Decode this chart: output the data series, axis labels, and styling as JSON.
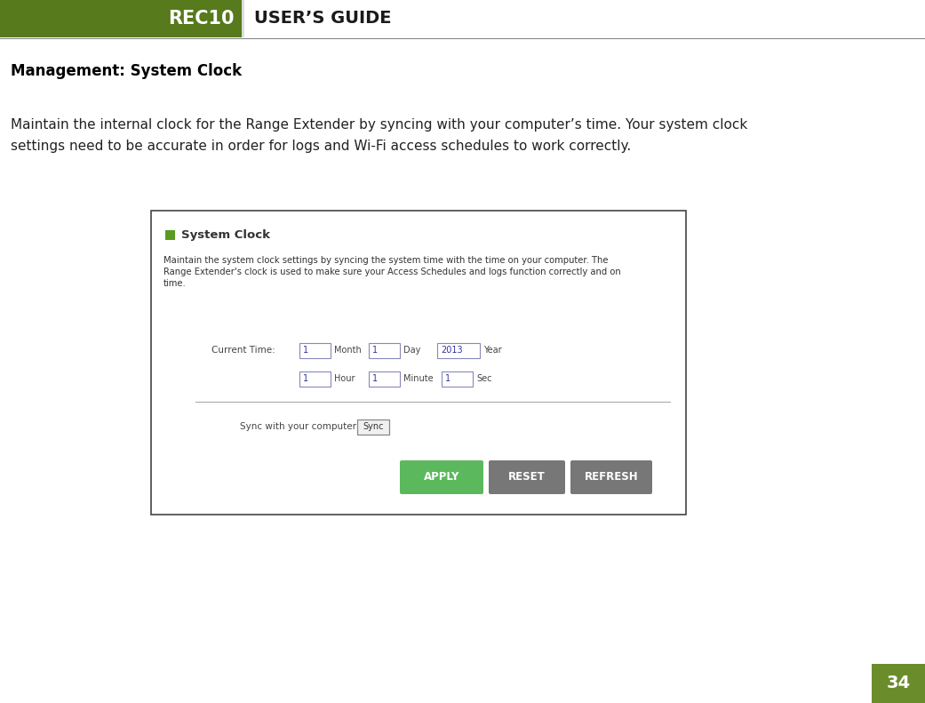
{
  "page_bg": "#ffffff",
  "header_bg": "#567a1c",
  "header_text_rec10": "REC10",
  "header_text_guide": "USER’S GUIDE",
  "header_text_color": "#ffffff",
  "header_guide_color": "#1a1a1a",
  "section_title": "Management: System Clock",
  "body_text_line1": "Maintain the internal clock for the Range Extender by syncing with your computer’s time. Your system clock",
  "body_text_line2": "settings need to be accurate in order for logs and Wi-Fi access schedules to work correctly.",
  "page_number": "34",
  "page_num_bg": "#6b8c2a",
  "page_num_color": "#ffffff",
  "panel_border": "#444444",
  "panel_bg": "#ffffff",
  "green_square_color": "#5a9a20",
  "system_clock_title": "System Clock",
  "panel_desc_line1": "Maintain the system clock settings by syncing the system time with the time on your computer. The",
  "panel_desc_line2": "Range Extender's clock is used to make sure your Access Schedules and logs function correctly and on",
  "panel_desc_line3": "time.",
  "current_time_label": "Current Time:",
  "field_month_val": "1",
  "field_day_val": "1",
  "field_year_val": "2013",
  "field_hour_val": "1",
  "field_minute_val": "1",
  "field_sec_val": "1",
  "sync_label": "Sync with your computer",
  "sync_btn_text": "Sync",
  "apply_btn_text": "APPLY",
  "apply_btn_bg": "#5cb85c",
  "reset_btn_text": "RESET",
  "reset_btn_bg": "#777777",
  "refresh_btn_text": "REFRESH",
  "refresh_btn_bg": "#777777",
  "field_border_color": "#8888bb",
  "field_text_color": "#333399"
}
